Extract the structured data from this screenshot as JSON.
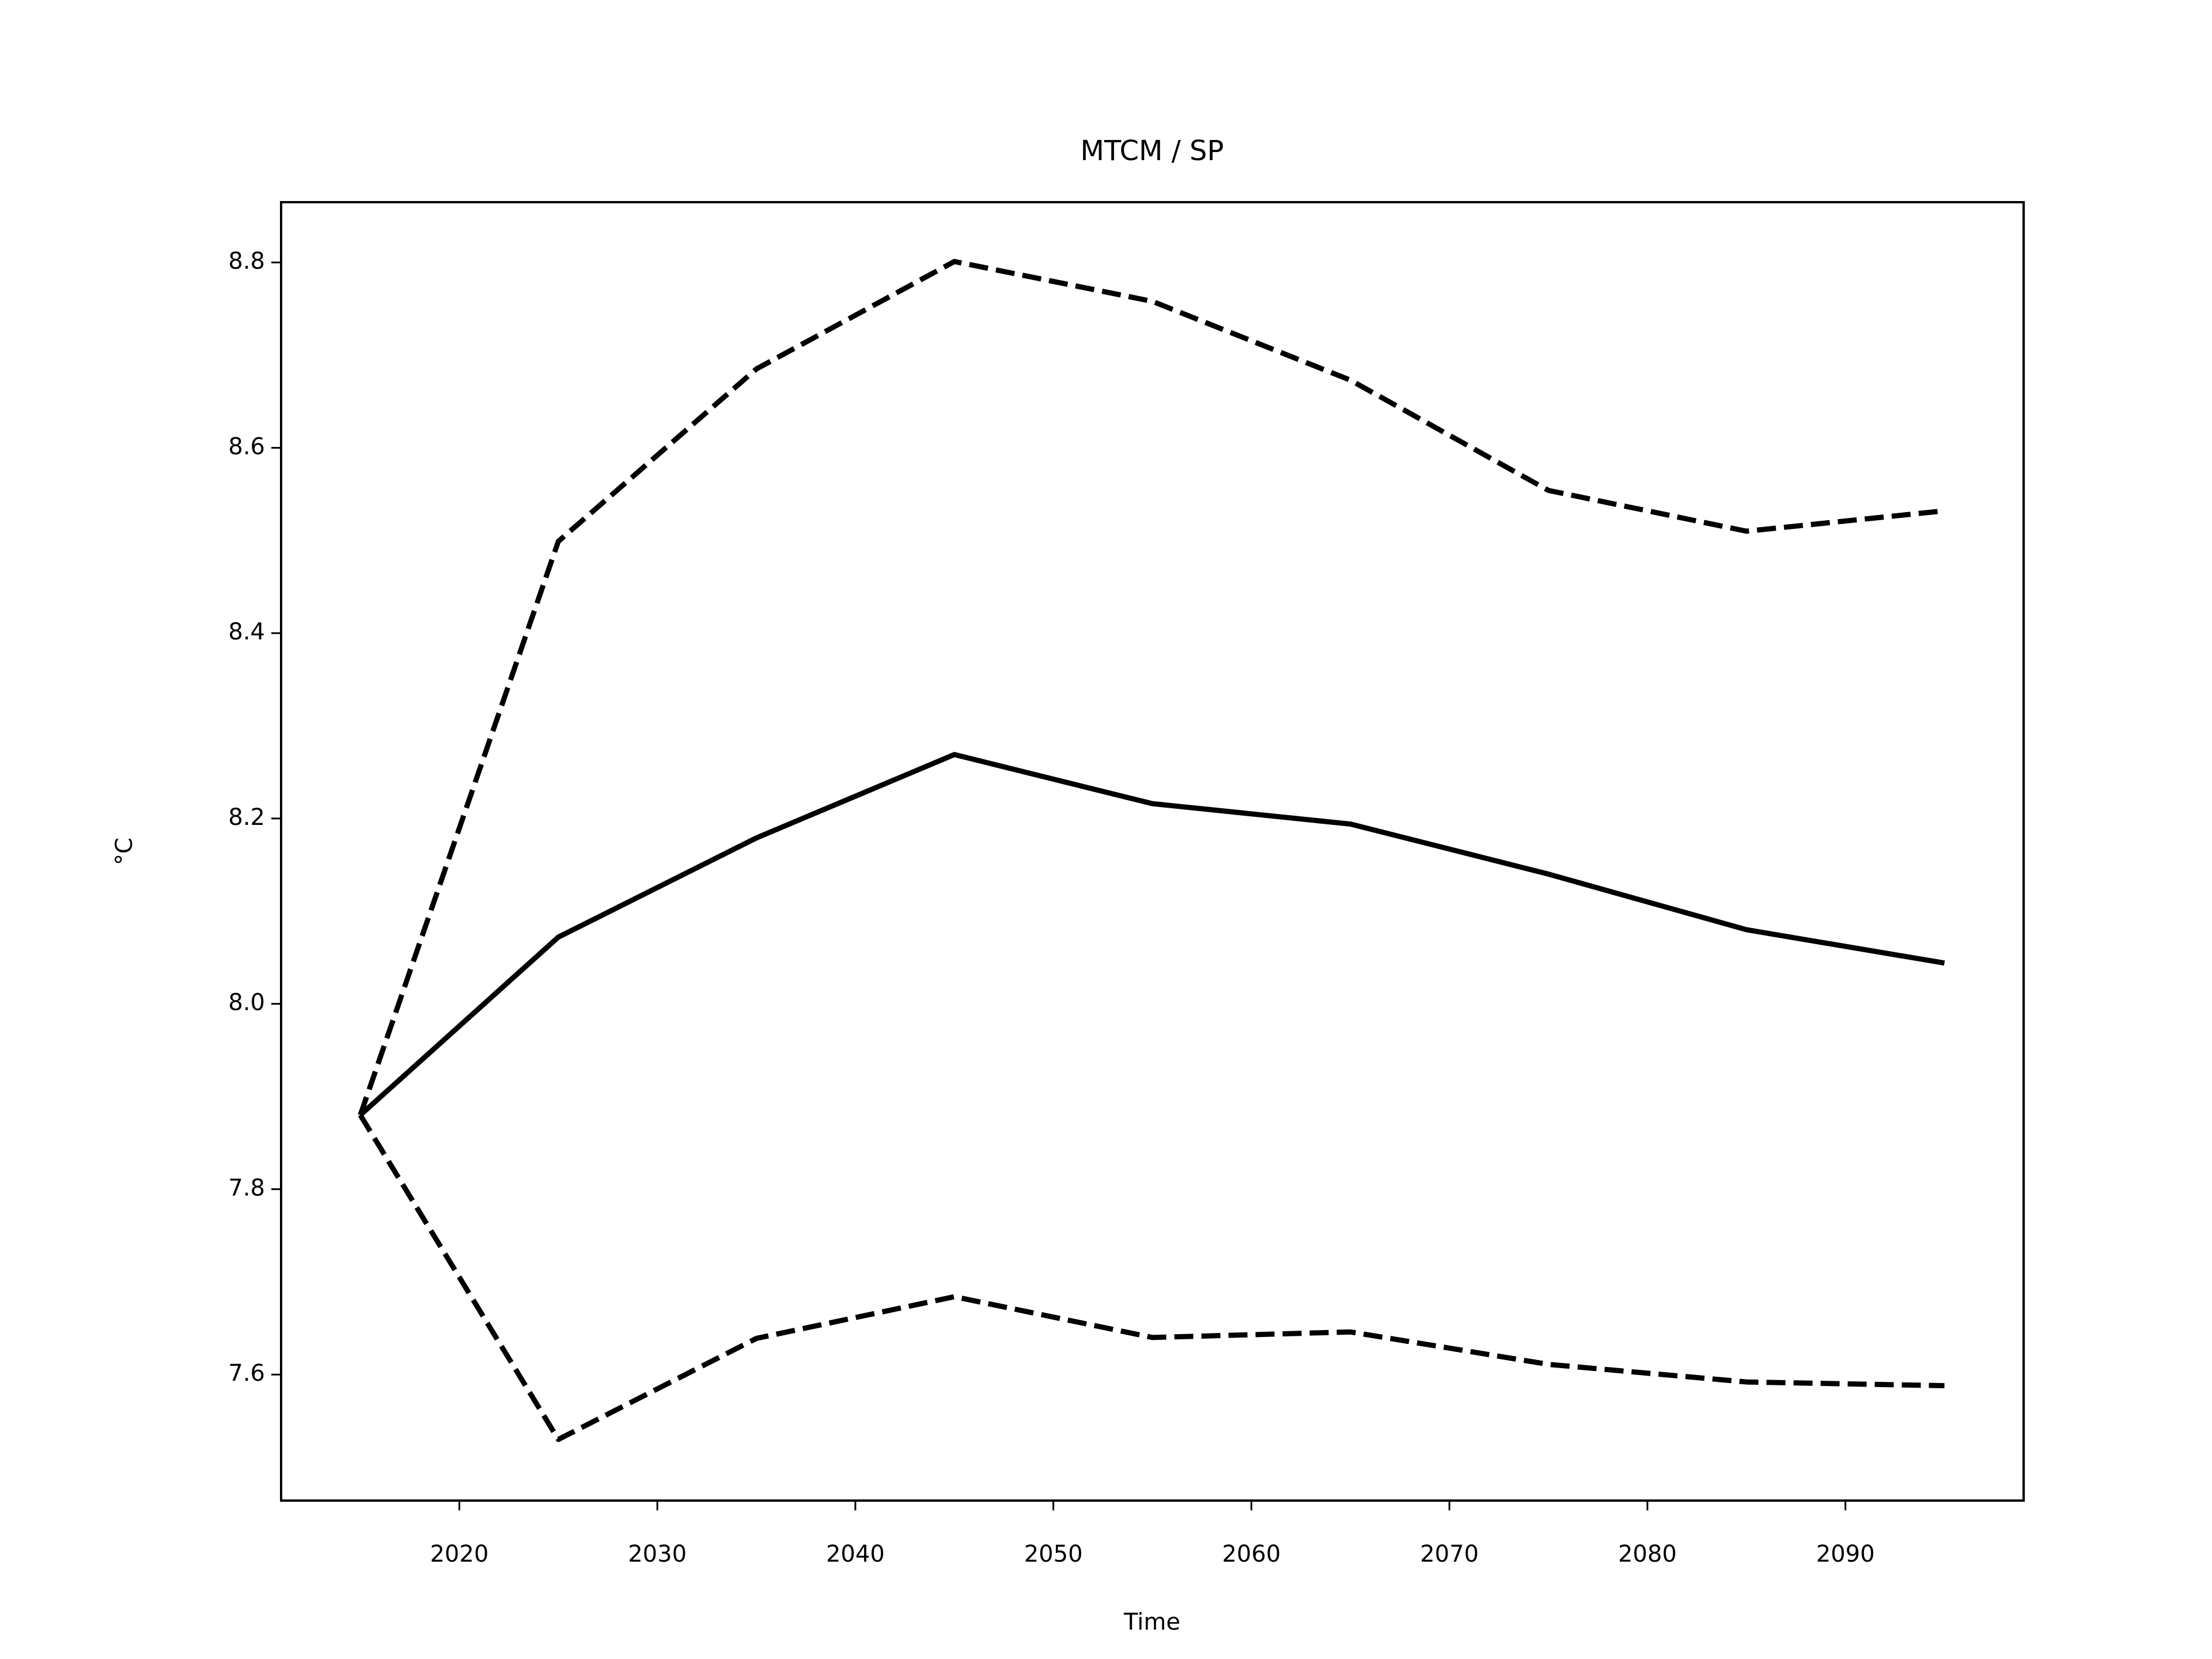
{
  "chart_data": {
    "type": "line",
    "title": "MTCM / SP",
    "xlabel": "Time",
    "ylabel": "°C",
    "x": [
      2015,
      2025,
      2035,
      2045,
      2055,
      2065,
      2075,
      2085,
      2095
    ],
    "series": [
      {
        "color": "#000000",
        "dashed": false,
        "values": [
          7.88,
          8.072,
          8.179,
          8.269,
          8.216,
          8.194,
          8.14,
          8.08,
          8.044
        ]
      },
      {
        "color": "#000000",
        "dashed": true,
        "values": [
          7.88,
          8.499,
          8.685,
          8.801,
          8.758,
          8.673,
          8.554,
          8.51,
          8.532
        ]
      },
      {
        "color": "#000000",
        "dashed": true,
        "values": [
          7.88,
          7.53,
          7.639,
          7.684,
          7.64,
          7.646,
          7.611,
          7.592,
          7.588
        ]
      }
    ],
    "xlim": [
      2011,
      2099
    ],
    "xticks": [
      2020,
      2030,
      2040,
      2050,
      2060,
      2070,
      2080,
      2090
    ],
    "ylim": [
      7.464,
      8.865
    ],
    "yticks": [
      {
        "value": 7.6,
        "label": "7.6"
      },
      {
        "value": 7.8,
        "label": "7.8"
      },
      {
        "value": 8.0,
        "label": "8.0"
      },
      {
        "value": 8.2,
        "label": "8.2"
      },
      {
        "value": 8.4,
        "label": "8.4"
      },
      {
        "value": 8.6,
        "label": "8.6"
      },
      {
        "value": 8.8,
        "label": "8.8"
      }
    ],
    "grid": false
  }
}
